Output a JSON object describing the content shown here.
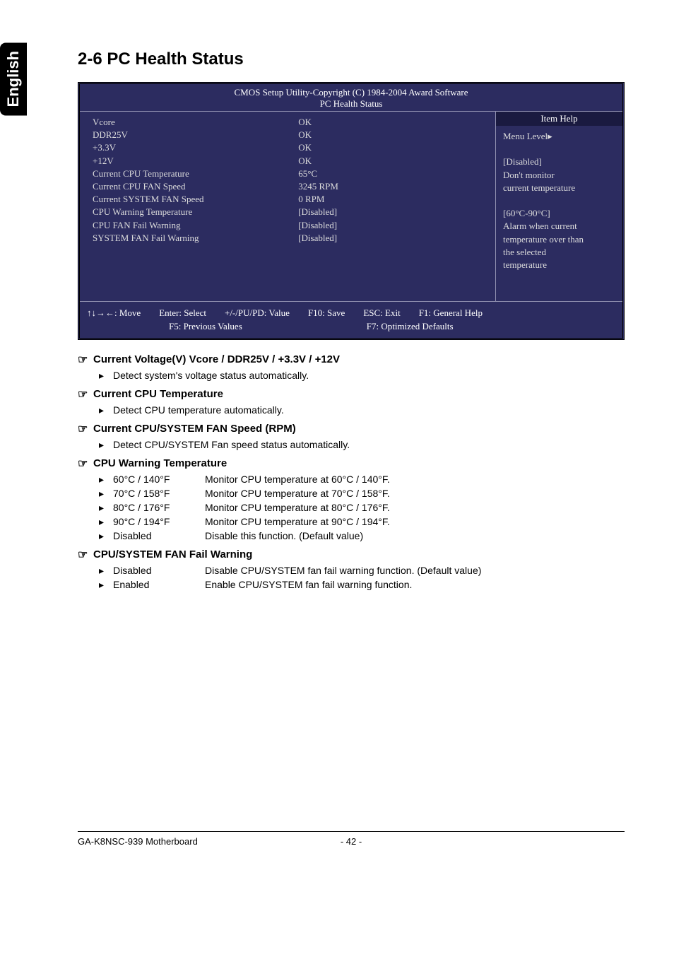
{
  "sideTab": "English",
  "sectionTitle": "2-6   PC Health Status",
  "bios": {
    "headerLine1": "CMOS Setup Utility-Copyright (C) 1984-2004 Award Software",
    "headerLine2": "PC Health Status",
    "rows": [
      {
        "label": "Vcore",
        "value": "OK"
      },
      {
        "label": "DDR25V",
        "value": "OK"
      },
      {
        "label": "+3.3V",
        "value": "OK"
      },
      {
        "label": "+12V",
        "value": "OK"
      },
      {
        "label": "Current CPU Temperature",
        "value": "65°C"
      },
      {
        "label": "Current CPU FAN Speed",
        "value": "3245 RPM"
      },
      {
        "label": "Current SYSTEM FAN Speed",
        "value": "0     RPM"
      },
      {
        "label": "CPU Warning Temperature",
        "value": "[Disabled]"
      },
      {
        "label": "CPU FAN Fail Warning",
        "value": "[Disabled]"
      },
      {
        "label": "SYSTEM FAN Fail Warning",
        "value": "[Disabled]"
      }
    ],
    "help": {
      "title": "Item Help",
      "menuLevel": "Menu Level▸",
      "lines": [
        "",
        "[Disabled]",
        "Don't monitor",
        "current temperature",
        "",
        "[60°C-90°C]",
        "Alarm when current",
        "temperature over than",
        "the selected",
        "temperature"
      ]
    },
    "footer": {
      "move": "↑↓→←: Move",
      "enter": "Enter: Select",
      "pupd": "+/-/PU/PD: Value",
      "f10": "F10: Save",
      "esc": "ESC: Exit",
      "f1": "F1: General Help",
      "f5": "F5: Previous Values",
      "f7": "F7: Optimized Defaults"
    }
  },
  "items": [
    {
      "title": "Current Voltage(V) Vcore / DDR25V / +3.3V / +12V",
      "subs": [
        "Detect system's voltage status automatically."
      ]
    },
    {
      "title": "Current CPU Temperature",
      "subs": [
        "Detect CPU temperature automatically."
      ]
    },
    {
      "title": "Current CPU/SYSTEM FAN Speed (RPM)",
      "subs": [
        "Detect CPU/SYSTEM Fan speed status automatically."
      ]
    },
    {
      "title": "CPU Warning Temperature",
      "options": [
        {
          "opt": "60°C / 140°F",
          "desc": "Monitor CPU temperature at 60°C / 140°F."
        },
        {
          "opt": "70°C / 158°F",
          "desc": "Monitor CPU temperature at 70°C / 158°F."
        },
        {
          "opt": "80°C / 176°F",
          "desc": "Monitor CPU temperature at 80°C / 176°F."
        },
        {
          "opt": "90°C / 194°F",
          "desc": "Monitor CPU temperature at 90°C / 194°F."
        },
        {
          "opt": "Disabled",
          "desc": "Disable this function. (Default value)"
        }
      ]
    },
    {
      "title": "CPU/SYSTEM FAN Fail Warning",
      "options": [
        {
          "opt": "Disabled",
          "desc": "Disable CPU/SYSTEM fan fail warning function. (Default value)"
        },
        {
          "opt": "Enabled",
          "desc": "Enable CPU/SYSTEM fan fail warning function."
        }
      ]
    }
  ],
  "pageFooter": {
    "left": "GA-K8NSC-939 Motherboard",
    "num": "- 42 -"
  }
}
